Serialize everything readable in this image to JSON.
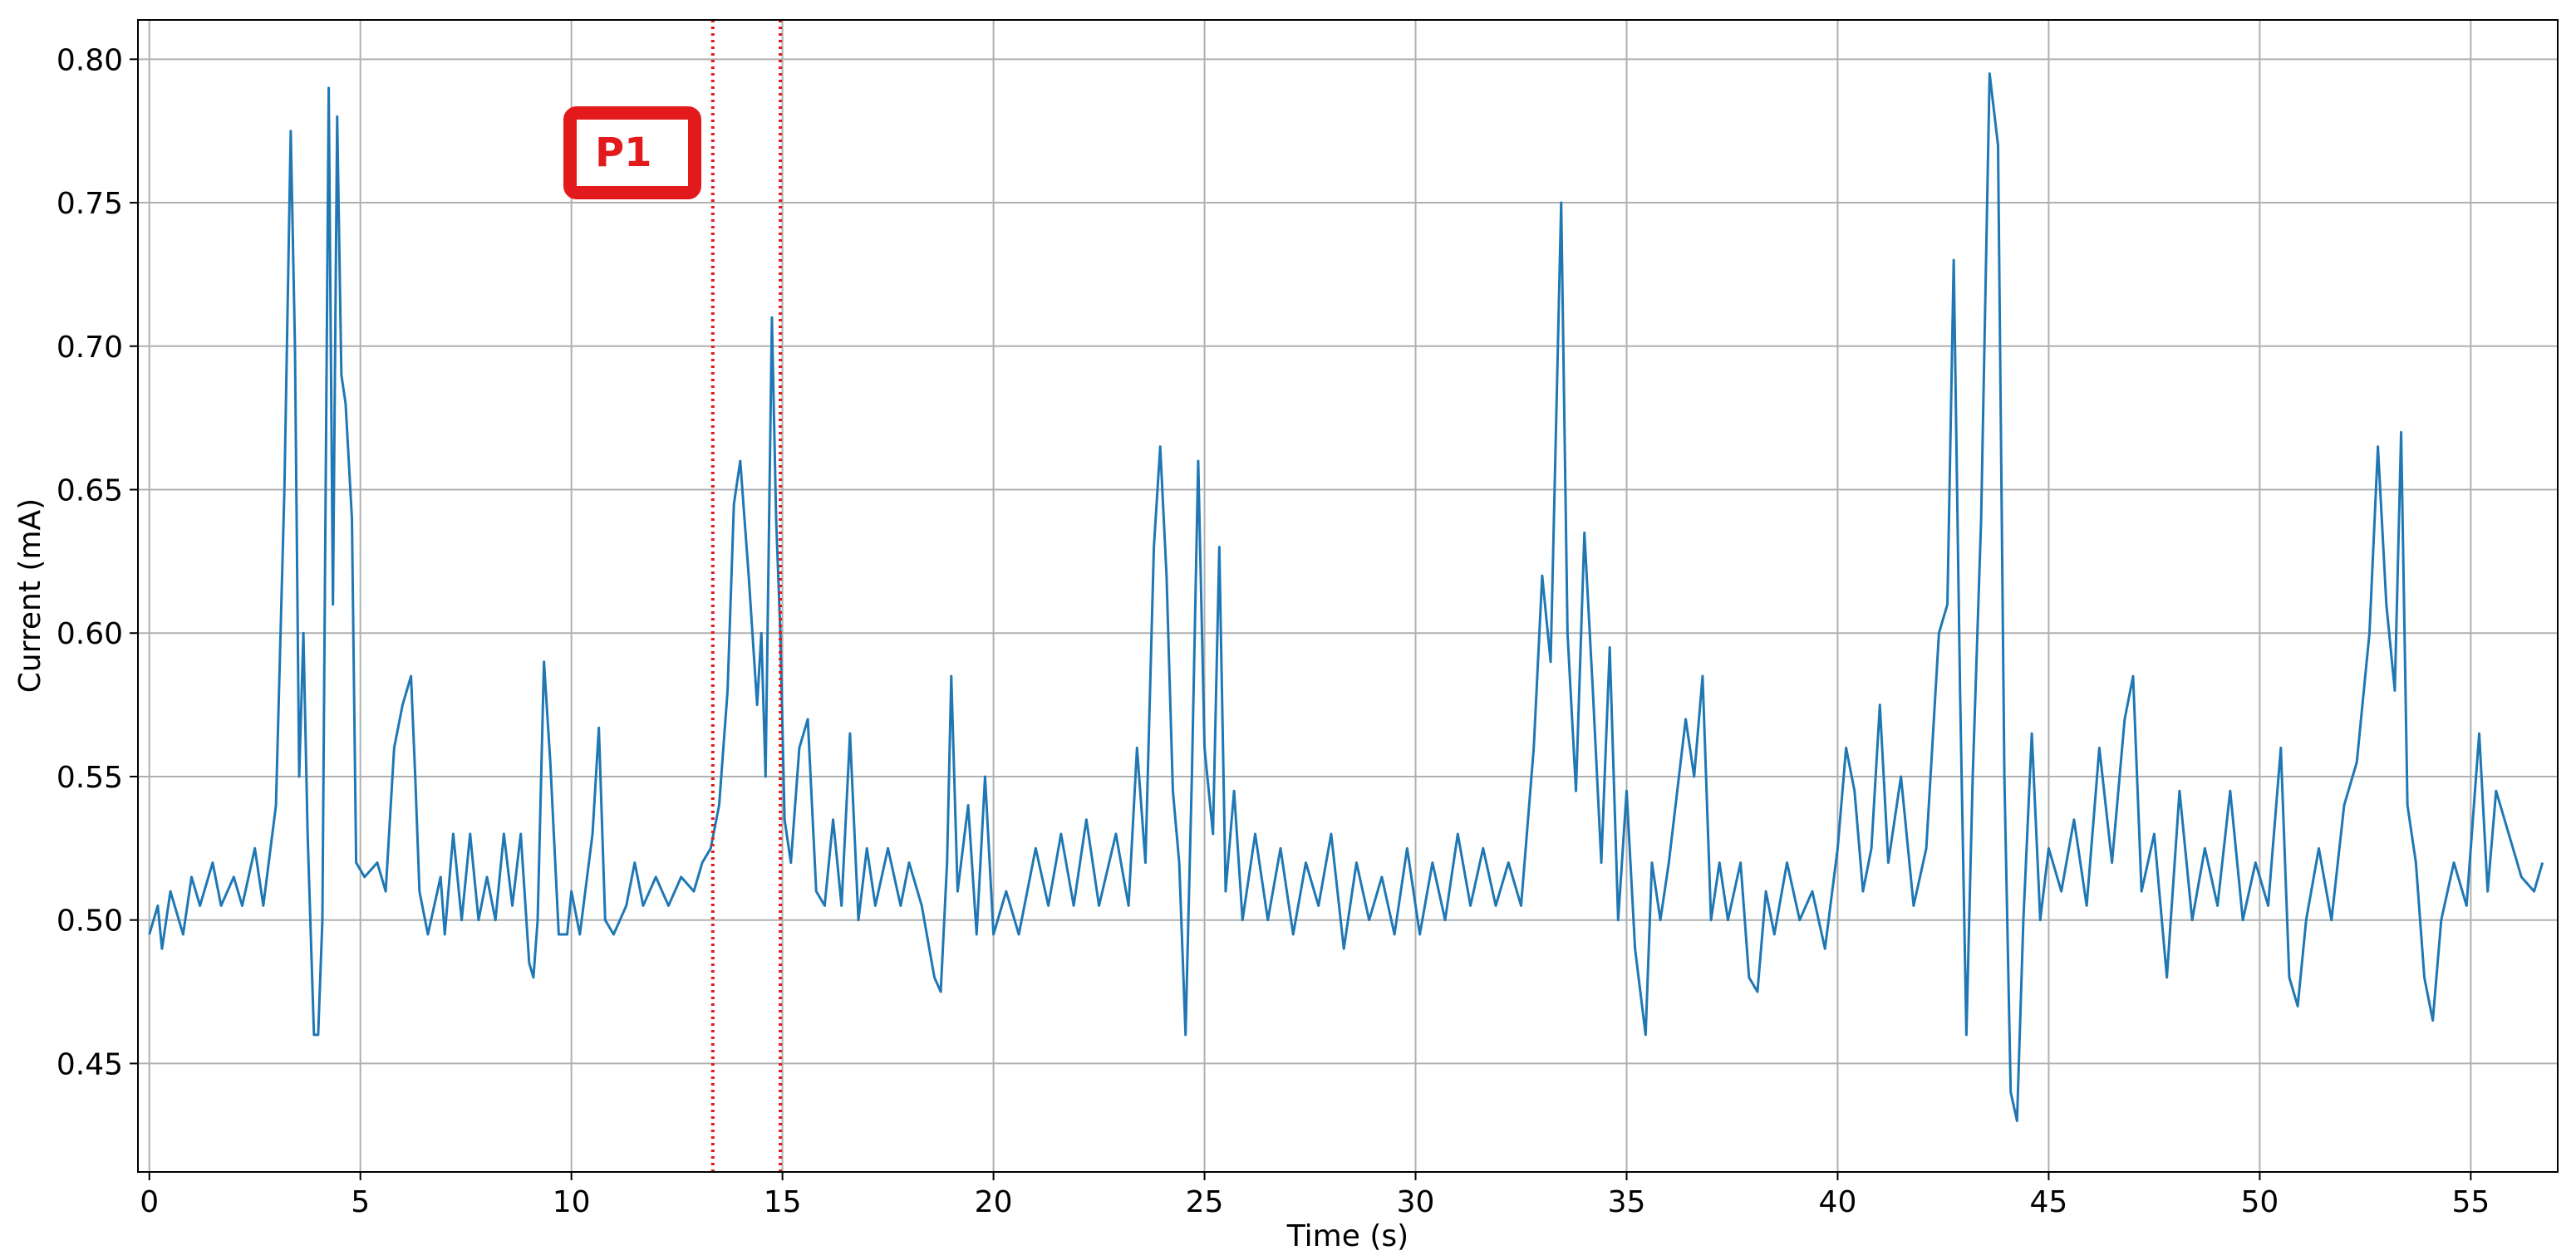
{
  "chart_data": {
    "type": "line",
    "xlabel": "Time (s)",
    "ylabel": "Current (mA)",
    "x": [
      0.0,
      0.2,
      0.3,
      0.5,
      0.8,
      1.0,
      1.2,
      1.5,
      1.7,
      2.0,
      2.2,
      2.5,
      2.7,
      3.0,
      3.2,
      3.35,
      3.45,
      3.55,
      3.65,
      3.75,
      3.9,
      4.0,
      4.1,
      4.25,
      4.35,
      4.45,
      4.55,
      4.65,
      4.8,
      4.9,
      5.1,
      5.4,
      5.6,
      5.8,
      6.0,
      6.2,
      6.3,
      6.4,
      6.6,
      6.9,
      7.0,
      7.2,
      7.4,
      7.6,
      7.8,
      8.0,
      8.2,
      8.4,
      8.6,
      8.8,
      9.0,
      9.1,
      9.2,
      9.35,
      9.5,
      9.6,
      9.7,
      9.9,
      10.0,
      10.2,
      10.5,
      10.65,
      10.8,
      11.0,
      11.3,
      11.5,
      11.7,
      12.0,
      12.3,
      12.6,
      12.9,
      13.1,
      13.3,
      13.5,
      13.7,
      13.85,
      14.0,
      14.2,
      14.4,
      14.5,
      14.6,
      14.75,
      14.85,
      14.95,
      15.05,
      15.2,
      15.4,
      15.6,
      15.8,
      16.0,
      16.2,
      16.4,
      16.6,
      16.8,
      17.0,
      17.2,
      17.5,
      17.8,
      18.0,
      18.3,
      18.6,
      18.75,
      18.9,
      19.0,
      19.15,
      19.4,
      19.6,
      19.8,
      20.0,
      20.3,
      20.6,
      21.0,
      21.3,
      21.6,
      21.9,
      22.2,
      22.5,
      22.9,
      23.2,
      23.4,
      23.6,
      23.8,
      23.95,
      24.1,
      24.25,
      24.4,
      24.55,
      24.7,
      24.85,
      25.0,
      25.2,
      25.35,
      25.5,
      25.7,
      25.9,
      26.2,
      26.5,
      26.8,
      27.1,
      27.4,
      27.7,
      28.0,
      28.3,
      28.6,
      28.9,
      29.2,
      29.5,
      29.8,
      30.1,
      30.4,
      30.7,
      31.0,
      31.3,
      31.6,
      31.9,
      32.2,
      32.5,
      32.8,
      33.0,
      33.2,
      33.45,
      33.6,
      33.8,
      34.0,
      34.2,
      34.4,
      34.6,
      34.8,
      35.0,
      35.2,
      35.45,
      35.6,
      35.8,
      36.0,
      36.2,
      36.4,
      36.6,
      36.8,
      37.0,
      37.2,
      37.4,
      37.7,
      37.9,
      38.1,
      38.3,
      38.5,
      38.8,
      39.1,
      39.4,
      39.7,
      40.0,
      40.2,
      40.4,
      40.6,
      40.8,
      41.0,
      41.2,
      41.5,
      41.8,
      42.1,
      42.4,
      42.6,
      42.75,
      42.9,
      43.05,
      43.2,
      43.4,
      43.6,
      43.8,
      43.95,
      44.1,
      44.25,
      44.4,
      44.6,
      44.8,
      45.0,
      45.3,
      45.6,
      45.9,
      46.2,
      46.5,
      46.8,
      47.0,
      47.2,
      47.5,
      47.8,
      48.1,
      48.4,
      48.7,
      49.0,
      49.3,
      49.6,
      49.9,
      50.2,
      50.5,
      50.7,
      50.9,
      51.1,
      51.4,
      51.7,
      52.0,
      52.3,
      52.6,
      52.8,
      53.0,
      53.2,
      53.35,
      53.5,
      53.7,
      53.9,
      54.1,
      54.3,
      54.6,
      54.9,
      55.2,
      55.4,
      55.6,
      55.9,
      56.2,
      56.5,
      56.7
    ],
    "values": [
      0.495,
      0.505,
      0.49,
      0.51,
      0.495,
      0.515,
      0.505,
      0.52,
      0.505,
      0.515,
      0.505,
      0.525,
      0.505,
      0.54,
      0.65,
      0.775,
      0.7,
      0.55,
      0.6,
      0.53,
      0.46,
      0.46,
      0.5,
      0.79,
      0.61,
      0.78,
      0.69,
      0.68,
      0.64,
      0.52,
      0.515,
      0.52,
      0.51,
      0.56,
      0.575,
      0.585,
      0.55,
      0.51,
      0.495,
      0.515,
      0.495,
      0.53,
      0.5,
      0.53,
      0.5,
      0.515,
      0.5,
      0.53,
      0.505,
      0.53,
      0.485,
      0.48,
      0.5,
      0.59,
      0.555,
      0.525,
      0.495,
      0.495,
      0.51,
      0.495,
      0.53,
      0.567,
      0.5,
      0.495,
      0.505,
      0.52,
      0.505,
      0.515,
      0.505,
      0.515,
      0.51,
      0.52,
      0.525,
      0.54,
      0.58,
      0.645,
      0.66,
      0.62,
      0.575,
      0.6,
      0.55,
      0.71,
      0.64,
      0.6,
      0.535,
      0.52,
      0.56,
      0.57,
      0.51,
      0.505,
      0.535,
      0.505,
      0.565,
      0.5,
      0.525,
      0.505,
      0.525,
      0.505,
      0.52,
      0.505,
      0.48,
      0.475,
      0.52,
      0.585,
      0.51,
      0.54,
      0.495,
      0.55,
      0.495,
      0.51,
      0.495,
      0.525,
      0.505,
      0.53,
      0.505,
      0.535,
      0.505,
      0.53,
      0.505,
      0.56,
      0.52,
      0.63,
      0.665,
      0.62,
      0.545,
      0.52,
      0.46,
      0.55,
      0.66,
      0.56,
      0.53,
      0.63,
      0.51,
      0.545,
      0.5,
      0.53,
      0.5,
      0.525,
      0.495,
      0.52,
      0.505,
      0.53,
      0.49,
      0.52,
      0.5,
      0.515,
      0.495,
      0.525,
      0.495,
      0.52,
      0.5,
      0.53,
      0.505,
      0.525,
      0.505,
      0.52,
      0.505,
      0.56,
      0.62,
      0.59,
      0.75,
      0.6,
      0.545,
      0.635,
      0.58,
      0.52,
      0.595,
      0.5,
      0.545,
      0.49,
      0.46,
      0.52,
      0.5,
      0.52,
      0.545,
      0.57,
      0.55,
      0.585,
      0.5,
      0.52,
      0.5,
      0.52,
      0.48,
      0.475,
      0.51,
      0.495,
      0.52,
      0.5,
      0.51,
      0.49,
      0.525,
      0.56,
      0.545,
      0.51,
      0.525,
      0.575,
      0.52,
      0.55,
      0.505,
      0.525,
      0.6,
      0.61,
      0.73,
      0.58,
      0.46,
      0.55,
      0.64,
      0.795,
      0.77,
      0.55,
      0.44,
      0.43,
      0.5,
      0.565,
      0.5,
      0.525,
      0.51,
      0.535,
      0.505,
      0.56,
      0.52,
      0.57,
      0.585,
      0.51,
      0.53,
      0.48,
      0.545,
      0.5,
      0.525,
      0.505,
      0.545,
      0.5,
      0.52,
      0.505,
      0.56,
      0.48,
      0.47,
      0.5,
      0.525,
      0.5,
      0.54,
      0.555,
      0.6,
      0.665,
      0.61,
      0.58,
      0.67,
      0.54,
      0.52,
      0.48,
      0.465,
      0.5,
      0.52,
      0.505,
      0.565,
      0.51,
      0.545,
      0.53,
      0.515,
      0.51,
      0.52
    ],
    "color": "#1f77b4",
    "xlim": [
      -0.27,
      57.06
    ],
    "ylim": [
      0.4122,
      0.8137
    ],
    "xticks": [
      0,
      5,
      10,
      15,
      20,
      25,
      30,
      35,
      40,
      45,
      50,
      55
    ],
    "yticks": [
      0.45,
      {
        "value": 0.5,
        "label": "0.50"
      },
      0.55,
      {
        "value": 0.6,
        "label": "0.60"
      },
      0.65,
      {
        "value": 0.7,
        "label": "0.70"
      },
      0.75,
      {
        "value": 0.8,
        "label": "0.80"
      }
    ],
    "grid": true,
    "vlines": [
      13.35,
      14.95
    ],
    "vline_color": "#e31a1c",
    "annotation": "P1"
  }
}
